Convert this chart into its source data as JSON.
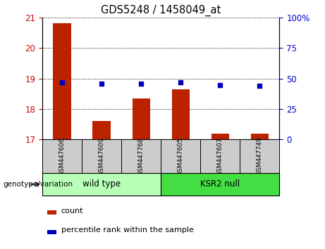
{
  "title": "GDS5248 / 1458049_at",
  "samples": [
    "GSM447606",
    "GSM447609",
    "GSM447768",
    "GSM447605",
    "GSM447607",
    "GSM447749"
  ],
  "counts": [
    20.8,
    17.6,
    18.35,
    18.65,
    17.2,
    17.2
  ],
  "percentiles": [
    47.0,
    45.5,
    45.5,
    47.0,
    44.5,
    44.0
  ],
  "ylim_left": [
    17,
    21
  ],
  "ylim_right": [
    0,
    100
  ],
  "yticks_left": [
    17,
    18,
    19,
    20,
    21
  ],
  "yticks_right": [
    0,
    25,
    50,
    75,
    100
  ],
  "ytick_labels_right": [
    "0",
    "25",
    "50",
    "75",
    "100%"
  ],
  "bar_color": "#bb2200",
  "dot_color": "#0000bb",
  "groups": [
    {
      "label": "wild type",
      "color": "#b8ffb8",
      "start": 0,
      "end": 2
    },
    {
      "label": "KSR2 null",
      "color": "#44dd44",
      "start": 3,
      "end": 5
    }
  ],
  "xlabel_group": "genotype/variation",
  "legend_count_label": "count",
  "legend_percentile_label": "percentile rank within the sample",
  "tick_label_color_left": "#cc0000",
  "tick_label_color_right": "#0000cc",
  "xtick_bg_color": "#cccccc",
  "grid_color": "#000000",
  "fig_width": 4.61,
  "fig_height": 3.54,
  "bar_width": 0.45
}
